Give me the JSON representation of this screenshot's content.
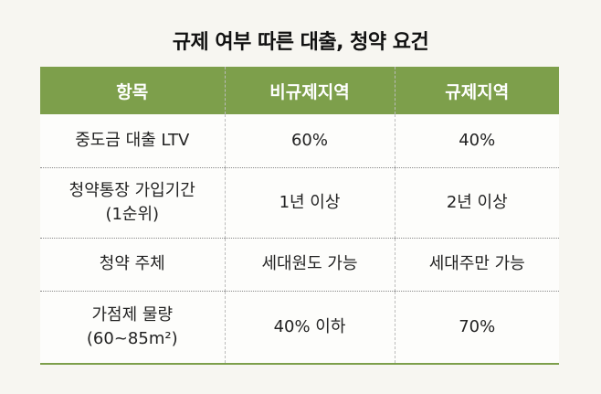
{
  "header": {
    "title": "규제 여부 따른 대출, 청약 요건"
  },
  "table": {
    "columns": [
      "항목",
      "비규제지역",
      "규제지역"
    ],
    "rows": [
      [
        [
          "중도금 대출 LTV"
        ],
        [
          "60%"
        ],
        [
          "40%"
        ]
      ],
      [
        [
          "청약통장 가입기간",
          "(1순위)"
        ],
        [
          "1년 이상"
        ],
        [
          "2년 이상"
        ]
      ],
      [
        [
          "청약 주체"
        ],
        [
          "세대원도 가능"
        ],
        [
          "세대주만 가능"
        ]
      ],
      [
        [
          "가점제 물량",
          "(60~85m²)"
        ],
        [
          "40% 이하"
        ],
        [
          "70%"
        ]
      ]
    ]
  }
}
